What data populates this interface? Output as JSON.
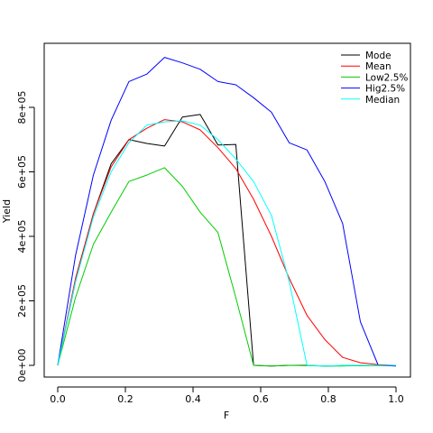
{
  "chart_data": {
    "type": "line",
    "xlabel": "F",
    "ylabel": "Yield",
    "xlim": [
      0,
      1
    ],
    "ylim": [
      0,
      900000
    ],
    "x_ticks": [
      0.0,
      0.2,
      0.4,
      0.6,
      0.8,
      1.0
    ],
    "x_tick_labels": [
      "0.0",
      "0.2",
      "0.4",
      "0.6",
      "0.8",
      "1.0"
    ],
    "y_ticks": [
      0,
      200000,
      400000,
      600000,
      800000
    ],
    "y_tick_labels": [
      "0e+00",
      "2e+05",
      "4e+05",
      "6e+05",
      "8e+05"
    ],
    "grid": false,
    "legend_position": "top-right",
    "x": [
      0.0,
      0.0526,
      0.1053,
      0.1579,
      0.2105,
      0.2632,
      0.3158,
      0.3684,
      0.4211,
      0.4737,
      0.5263,
      0.5789,
      0.6316,
      0.6842,
      0.7368,
      0.7895,
      0.8421,
      0.8947,
      0.9474,
      1.0
    ],
    "series": [
      {
        "name": "Mode",
        "color": "#000000",
        "values": [
          0,
          260000,
          470000,
          625000,
          700000,
          688000,
          680000,
          770000,
          778000,
          683000,
          685000,
          0,
          -2000,
          0,
          0,
          -2000,
          -1000,
          -1000,
          0,
          0
        ]
      },
      {
        "name": "Mean",
        "color": "#ff0000",
        "values": [
          0,
          270000,
          470000,
          615000,
          700000,
          735000,
          762000,
          755000,
          730000,
          675000,
          610000,
          515000,
          400000,
          270000,
          155000,
          80000,
          25000,
          8000,
          2000,
          0
        ]
      },
      {
        "name": "Low2.5%",
        "color": "#00cd00",
        "values": [
          0,
          210000,
          375000,
          475000,
          570000,
          590000,
          613000,
          555000,
          475000,
          412000,
          210000,
          0,
          -2000,
          0,
          -1000,
          -2000,
          -2000,
          -1000,
          -1000,
          0
        ]
      },
      {
        "name": "Hig2.5%",
        "color": "#0000ff",
        "values": [
          0,
          340000,
          590000,
          760000,
          880000,
          903000,
          955000,
          938000,
          918000,
          880000,
          870000,
          830000,
          785000,
          690000,
          668000,
          570000,
          440000,
          135000,
          0,
          -2000
        ]
      },
      {
        "name": "Median",
        "color": "#00ffff",
        "values": [
          0,
          260000,
          460000,
          600000,
          690000,
          745000,
          755000,
          758000,
          745000,
          700000,
          640000,
          570000,
          465000,
          260000,
          0,
          -2000,
          0,
          0,
          0,
          0
        ]
      }
    ]
  }
}
